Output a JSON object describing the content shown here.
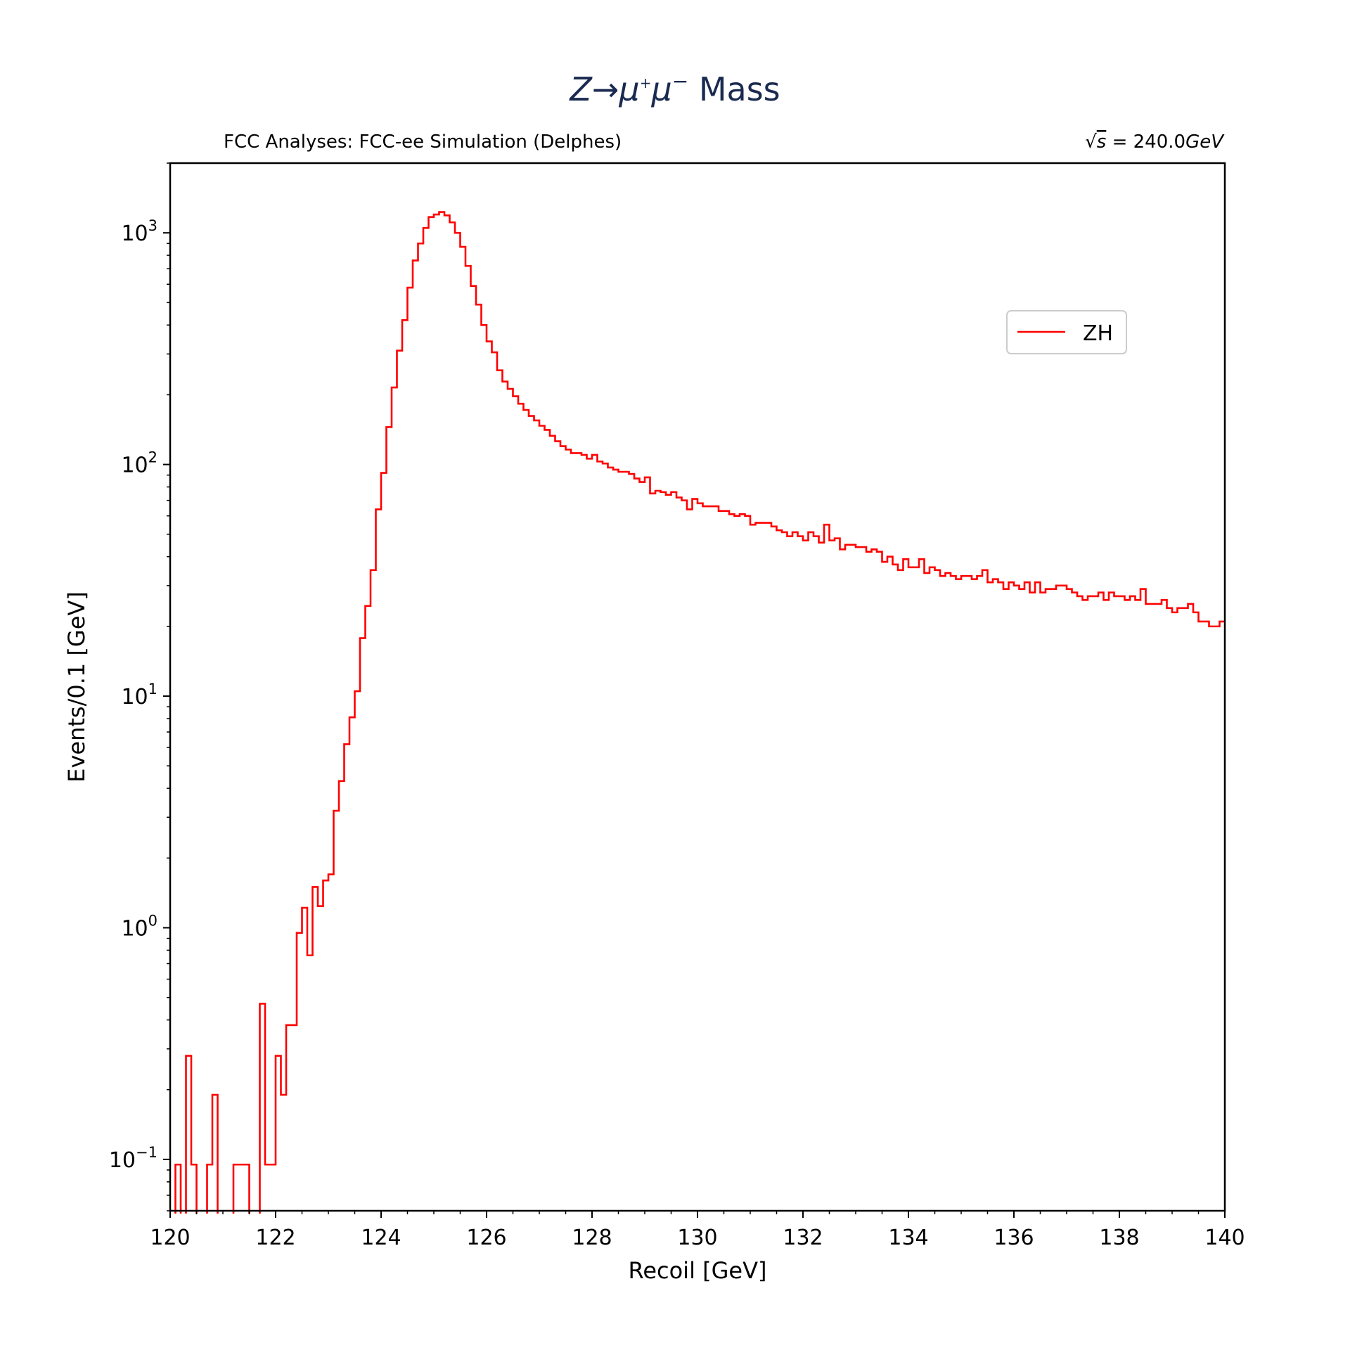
{
  "chart_data": {
    "type": "histogram-step",
    "title": {
      "prefix": "Z→μ",
      "sup1": "+",
      "mid": "μ",
      "sup2": "−",
      "suffix": " Mass"
    },
    "subtitle_left": "FCC Analyses: FCC-ee Simulation (Delphes)",
    "subtitle_right": {
      "sqrt": "√",
      "var": "s",
      "value": " = 240.0",
      "unit": "GeV"
    },
    "xlabel": "Recoil [GeV]",
    "ylabel": "Events/0.1 [GeV]",
    "xlim": [
      120,
      140
    ],
    "ylim": [
      0.06,
      2000
    ],
    "yscale": "log",
    "x_ticks": [
      "120",
      "122",
      "124",
      "126",
      "128",
      "130",
      "132",
      "134",
      "136",
      "138",
      "140"
    ],
    "y_ticks": [
      {
        "base": "10",
        "exp": "−1",
        "value": 0.1
      },
      {
        "base": "10",
        "exp": "0",
        "value": 1
      },
      {
        "base": "10",
        "exp": "1",
        "value": 10
      },
      {
        "base": "10",
        "exp": "2",
        "value": 100
      },
      {
        "base": "10",
        "exp": "3",
        "value": 1000
      }
    ],
    "legend": {
      "placement": "upper-right",
      "entries": [
        {
          "name": "ZH",
          "color": "#ff0000"
        }
      ]
    },
    "grid": false,
    "color": "#ff0000",
    "bin_width": 0.1,
    "x_start": 120.0,
    "series": [
      {
        "name": "ZH",
        "values": [
          0,
          0.095,
          0,
          0.28,
          0.095,
          0,
          0,
          0.095,
          0.19,
          0,
          0,
          0,
          0.095,
          0.095,
          0.095,
          0,
          0,
          0.47,
          0.095,
          0.095,
          0.28,
          0.19,
          0.38,
          0.38,
          0.95,
          1.22,
          0.76,
          1.5,
          1.24,
          1.6,
          1.7,
          3.2,
          4.3,
          6.2,
          8.1,
          10.5,
          17.8,
          24.5,
          35,
          64,
          92,
          145,
          215,
          310,
          420,
          580,
          760,
          900,
          1050,
          1170,
          1200,
          1230,
          1190,
          1110,
          1000,
          870,
          720,
          590,
          490,
          400,
          340,
          305,
          255,
          228,
          212,
          197,
          183,
          172,
          162,
          155,
          147,
          141,
          133,
          126,
          120,
          116,
          112,
          112,
          110,
          106,
          110,
          103,
          101,
          97,
          95,
          93,
          93,
          91,
          87,
          84,
          88,
          75,
          77,
          76,
          74,
          76,
          72,
          70,
          64,
          71,
          68,
          66,
          66,
          66,
          63,
          63,
          61,
          60,
          61,
          60,
          55,
          56,
          56,
          56,
          54,
          52,
          51,
          49,
          51,
          49,
          47,
          51,
          49,
          46,
          55,
          47,
          48,
          43,
          45,
          45,
          44,
          44,
          42,
          43,
          42,
          38,
          40,
          37,
          35,
          39,
          36,
          36,
          39,
          34,
          36,
          35,
          33,
          34,
          33,
          32,
          33,
          33,
          32,
          33,
          35,
          31,
          32,
          31,
          29,
          31,
          30,
          29,
          31,
          28,
          31,
          28,
          29,
          29,
          30,
          30,
          29,
          28,
          27,
          26,
          27,
          27,
          28,
          26,
          28,
          27,
          27,
          26,
          27,
          26,
          29,
          25,
          25,
          25,
          26,
          24,
          23,
          24,
          24,
          25,
          23,
          21,
          21,
          20,
          20,
          21
        ]
      }
    ]
  }
}
